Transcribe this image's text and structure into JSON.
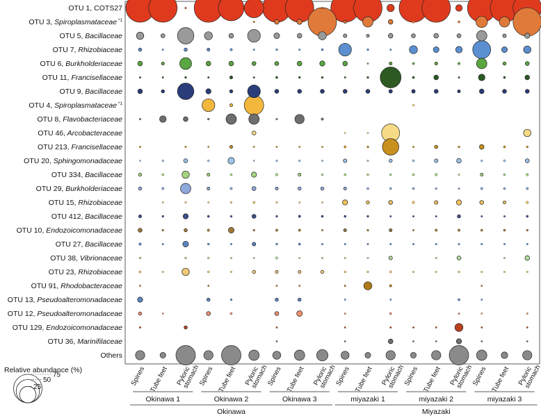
{
  "chart_data": {
    "type": "bubble",
    "legend": {
      "title": "Relative abundance  (%)",
      "values": [
        75,
        50,
        25
      ],
      "placement": "bottom-left"
    },
    "columns": [
      {
        "line1": "Spines",
        "line2": ""
      },
      {
        "line1": "Tube feet",
        "line2": ""
      },
      {
        "line1": "Pyloric",
        "line2": "stomach"
      },
      {
        "line1": "Spines",
        "line2": ""
      },
      {
        "line1": "Tube feet",
        "line2": ""
      },
      {
        "line1": "Pyloric",
        "line2": "stomach"
      },
      {
        "line1": "Spines",
        "line2": ""
      },
      {
        "line1": "Tube feet",
        "line2": ""
      },
      {
        "line1": "Pyloric",
        "line2": "stomach"
      },
      {
        "line1": "Spines",
        "line2": ""
      },
      {
        "line1": "Tube feet",
        "line2": ""
      },
      {
        "line1": "Pyloric",
        "line2": "stomach"
      },
      {
        "line1": "Spines",
        "line2": ""
      },
      {
        "line1": "Tube feet",
        "line2": ""
      },
      {
        "line1": "Pyloric",
        "line2": "stomach"
      },
      {
        "line1": "Spines",
        "line2": ""
      },
      {
        "line1": "Tube feet",
        "line2": ""
      },
      {
        "line1": "Pyloric",
        "line2": "stomach"
      }
    ],
    "groups": [
      {
        "label": "Okinawa 1",
        "cols": [
          0,
          2
        ]
      },
      {
        "label": "Okinawa 2",
        "cols": [
          3,
          5
        ]
      },
      {
        "label": "Okinawa 3",
        "cols": [
          6,
          8
        ]
      },
      {
        "label": "miyazaki 1",
        "cols": [
          9,
          11
        ]
      },
      {
        "label": "miyazaki 2",
        "cols": [
          12,
          14
        ]
      },
      {
        "label": "miyazaki 3",
        "cols": [
          15,
          17
        ]
      }
    ],
    "regions": [
      {
        "label": "Okinawa",
        "cols": [
          0,
          8
        ]
      },
      {
        "label": "Miyazaki",
        "cols": [
          9,
          17
        ]
      }
    ],
    "rows": [
      {
        "otu": "OTU 1,",
        "taxon": "COTS27",
        "italic": false,
        "sup": "",
        "color": "#e03a1e",
        "values": [
          75,
          75,
          0.3,
          75,
          60,
          35,
          75,
          75,
          0.2,
          75,
          75,
          5,
          75,
          75,
          4,
          75,
          75,
          75
        ]
      },
      {
        "otu": "OTU 3,",
        "taxon": "Spiroplasmataceae",
        "italic": true,
        "sup": "*1",
        "color": "#e07a3a",
        "values": [
          0,
          0,
          0,
          0.1,
          0,
          0.3,
          2,
          2.5,
          75,
          0.8,
          10,
          2,
          0.6,
          0.3,
          0.5,
          12,
          10,
          75
        ]
      },
      {
        "otu": "OTU 5,",
        "taxon": "Bacillaceae",
        "italic": true,
        "sup": "",
        "color": "#9a9a9a",
        "values": [
          5,
          1.5,
          25,
          6,
          2,
          15,
          3,
          2,
          6,
          1.2,
          0.8,
          2,
          1.5,
          2,
          1.5,
          10,
          1.2,
          2.5
        ]
      },
      {
        "otu": "OTU 7,",
        "taxon": "Rhizobiaceae",
        "italic": true,
        "sup": "",
        "color": "#5b8fcf",
        "values": [
          1,
          0.3,
          1,
          0.8,
          0.6,
          0.3,
          0.4,
          0.3,
          0.5,
          15,
          0.4,
          0.3,
          6,
          3,
          4,
          30,
          3,
          5
        ]
      },
      {
        "otu": "OTU 6,",
        "taxon": "Burkholderiaceae",
        "italic": true,
        "sup": "",
        "color": "#5aa640",
        "values": [
          2,
          0.8,
          13,
          2,
          2,
          1.5,
          1.5,
          2,
          2.5,
          2,
          0.2,
          0.8,
          0.5,
          0.8,
          0.6,
          10,
          1,
          1.5
        ]
      },
      {
        "otu": "OTU 11,",
        "taxon": "Francisellaceae",
        "italic": true,
        "sup": "",
        "color": "#2c5a22",
        "values": [
          0.3,
          0.3,
          0.4,
          0.3,
          0.8,
          0.3,
          0.5,
          0.4,
          0.4,
          0.3,
          0.4,
          40,
          0.5,
          2,
          0.3,
          4,
          0.5,
          2
        ]
      },
      {
        "otu": "OTU 9,",
        "taxon": "Bacillaceae",
        "italic": true,
        "sup": "",
        "color": "#2a3d7a",
        "values": [
          2,
          1,
          25,
          2.5,
          1,
          15,
          1.5,
          1.5,
          1.5,
          1.5,
          1.5,
          1.2,
          1.2,
          1.5,
          0.8,
          2,
          1.5,
          1.5
        ]
      },
      {
        "otu": "OTU 4,",
        "taxon": "Spiroplasmataceae",
        "italic": true,
        "sup": "*1",
        "color": "#f2b73c",
        "values": [
          0,
          0,
          0,
          15,
          0.8,
          35,
          0,
          0,
          0,
          0,
          0,
          0,
          0.1,
          0,
          0,
          0,
          0,
          0
        ]
      },
      {
        "otu": "OTU 8,",
        "taxon": "Flavobacteriaceae",
        "italic": true,
        "sup": "",
        "color": "#6e6e6e",
        "values": [
          0.3,
          4,
          2,
          0.4,
          10,
          10,
          0.3,
          8,
          0.6,
          0,
          0,
          0,
          0,
          0,
          0,
          0,
          0,
          0
        ]
      },
      {
        "otu": "OTU 46,",
        "taxon": "Arcobacteraceae",
        "italic": true,
        "sup": "",
        "color": "#f7da86",
        "values": [
          0,
          0,
          0,
          0,
          0,
          1.5,
          0,
          0,
          0,
          0.2,
          0.2,
          30,
          0,
          0,
          0,
          0,
          0,
          5
        ]
      },
      {
        "otu": "OTU 213,",
        "taxon": "Francisellaceae",
        "italic": true,
        "sup": "",
        "color": "#c8901e",
        "values": [
          0.3,
          0,
          0.3,
          0.2,
          0.8,
          0.2,
          0.2,
          0.2,
          0.2,
          0.5,
          0.4,
          25,
          0.3,
          1,
          0.4,
          2,
          0.5,
          0.4
        ]
      },
      {
        "otu": "OTU 20,",
        "taxon": "Sphingomonadaceae",
        "italic": true,
        "sup": "",
        "color": "#9ec3e6",
        "values": [
          0.2,
          0.4,
          1.5,
          0.4,
          4,
          0.2,
          0.4,
          0.4,
          0.3,
          1.2,
          0.3,
          1,
          0.5,
          1.2,
          2,
          0.4,
          0.5,
          1.5
        ]
      },
      {
        "otu": "OTU 334,",
        "taxon": "Bacillaceae",
        "italic": true,
        "sup": "",
        "color": "#a4d47e",
        "values": [
          1,
          0.5,
          5,
          0.8,
          0.5,
          2.5,
          0.6,
          0.8,
          0.4,
          0.5,
          0.4,
          0.4,
          0.5,
          0.6,
          0.3,
          0.8,
          0.5,
          0.6
        ]
      },
      {
        "otu": "OTU 29,",
        "taxon": "Burkholderiaceae",
        "italic": true,
        "sup": "",
        "color": "#8fa8dc",
        "values": [
          1,
          0.6,
          10,
          0.8,
          0.6,
          1.5,
          0.8,
          1,
          1,
          0.8,
          0.5,
          0.5,
          0.5,
          0.4,
          0.3,
          0.6,
          0.5,
          0.6
        ]
      },
      {
        "otu": "OTU 15,",
        "taxon": "Rhizobiaceae",
        "italic": true,
        "sup": "",
        "color": "#f2c160",
        "values": [
          0,
          0.2,
          0.3,
          0.2,
          0.3,
          0.5,
          0.3,
          0.2,
          0.2,
          2.5,
          1,
          1.5,
          0.6,
          1.2,
          2.5,
          1.5,
          0.8,
          0.6
        ]
      },
      {
        "otu": "OTU 412,",
        "taxon": "Bacillaceae",
        "italic": true,
        "sup": "",
        "color": "#3d4f8c",
        "values": [
          0.8,
          0.4,
          2.5,
          0.5,
          0.4,
          1.5,
          0.4,
          0.6,
          0.5,
          0.5,
          0.4,
          0.3,
          0.3,
          0.3,
          1,
          0.3,
          0.3,
          0.5
        ]
      },
      {
        "otu": "OTU 10,",
        "taxon": "Endozoicomonadaceae",
        "italic": true,
        "sup": "",
        "color": "#a07a3a",
        "values": [
          1.5,
          0.4,
          1,
          0.6,
          3,
          0.4,
          0.6,
          0.6,
          0.3,
          0.8,
          0.4,
          0.8,
          0.3,
          0.6,
          0.6,
          0.5,
          0.5,
          0.4
        ]
      },
      {
        "otu": "OTU 27,",
        "taxon": "Bacillaceae",
        "italic": true,
        "sup": "",
        "color": "#5b85c2",
        "values": [
          0.6,
          0.3,
          3,
          0.4,
          0.3,
          1.2,
          0.4,
          0.5,
          0.3,
          0.3,
          0.3,
          0.3,
          0.3,
          0.3,
          0.3,
          0.3,
          0.3,
          0.3
        ]
      },
      {
        "otu": "OTU 38,",
        "taxon": "Vibrionaceae",
        "italic": true,
        "sup": "",
        "color": "#b3dc9e",
        "values": [
          0.4,
          0,
          0.4,
          0.4,
          0.3,
          0.3,
          0.6,
          0.3,
          0.3,
          0.3,
          0.3,
          1.2,
          0,
          0.3,
          1.5,
          0,
          0.3,
          2
        ]
      },
      {
        "otu": "OTU 23,",
        "taxon": "Rhizobiaceae",
        "italic": true,
        "sup": "",
        "color": "#f2c977",
        "values": [
          0.5,
          0.3,
          5,
          0.4,
          0.3,
          1,
          0.8,
          0.8,
          1,
          0.4,
          0.4,
          0.5,
          0.3,
          0.3,
          0.4,
          0.3,
          0.3,
          0.3
        ]
      },
      {
        "otu": "OTU 91,",
        "taxon": "Rhodobacteraceae",
        "italic": true,
        "sup": "",
        "color": "#b07a18",
        "values": [
          0.2,
          0,
          0,
          0.1,
          0,
          0,
          0.2,
          0.2,
          0,
          0.3,
          6,
          0.6,
          0,
          0,
          0,
          0.1,
          0,
          0
        ]
      },
      {
        "otu": "OTU 13,",
        "taxon": "Pseudoalteromonadaceae",
        "italic": true,
        "sup": "",
        "color": "#5b85c2",
        "values": [
          2.5,
          0,
          0,
          1,
          0.4,
          0,
          1,
          1,
          0,
          0.2,
          0,
          0.2,
          0,
          0,
          0.5,
          0.2,
          0,
          0
        ]
      },
      {
        "otu": "OTU 12,",
        "taxon": "Pseudoalteromonadaceae",
        "italic": true,
        "sup": "",
        "color": "#ef9070",
        "values": [
          1,
          0.2,
          0,
          1.5,
          0.5,
          0,
          1.5,
          3,
          0,
          0.3,
          0,
          0.5,
          0,
          0,
          0.3,
          0.2,
          0,
          0.3
        ]
      },
      {
        "otu": "OTU 129,",
        "taxon": "Endozoicomonadaceae",
        "italic": true,
        "sup": "",
        "color": "#b8401e",
        "values": [
          0.3,
          0,
          1,
          0,
          0,
          0,
          0.2,
          0,
          0,
          0.2,
          0,
          0.3,
          0.2,
          0.2,
          6,
          0.2,
          0,
          0.2
        ]
      },
      {
        "otu": "OTU 36,",
        "taxon": "Marinifilaceae",
        "italic": true,
        "sup": "",
        "color": "#6e6e6e",
        "values": [
          0,
          0,
          0,
          0,
          0,
          0,
          0.2,
          0,
          0,
          0.2,
          0,
          2,
          0.2,
          0.2,
          2.5,
          0.2,
          0,
          0.2
        ]
      },
      {
        "otu": "Others",
        "taxon": "",
        "italic": false,
        "sup": "",
        "color": "#8a8a8a",
        "values": [
          8,
          3,
          35,
          8,
          35,
          10,
          6,
          10,
          12,
          6,
          3,
          8,
          3,
          8,
          35,
          10,
          4,
          8
        ]
      }
    ]
  }
}
